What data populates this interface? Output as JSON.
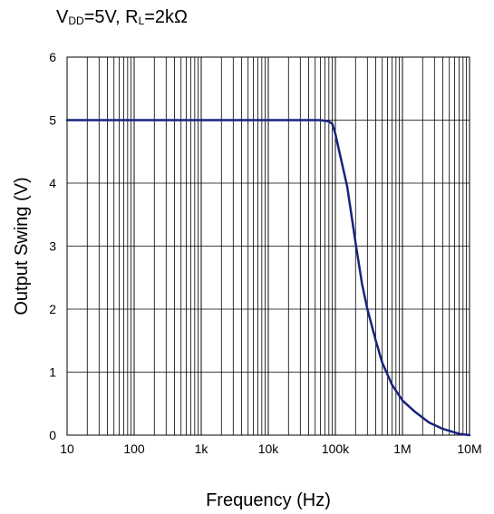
{
  "conditions": {
    "vdd_prefix": "V",
    "vdd_sub": "DD",
    "vdd_value": "=5V, ",
    "rl_prefix": "R",
    "rl_sub": "L",
    "rl_value": "=2kΩ"
  },
  "chart_data": {
    "type": "line",
    "title": "",
    "xlabel": "Frequency (Hz)",
    "ylabel": "Output Swing (V)",
    "x_scale": "log",
    "xlim": [
      10,
      10000000
    ],
    "ylim": [
      0,
      6
    ],
    "x_tick_values": [
      10,
      100,
      1000,
      10000,
      100000,
      1000000,
      10000000
    ],
    "x_tick_labels": [
      "10",
      "100",
      "1k",
      "10k",
      "100k",
      "1M",
      "10M"
    ],
    "y_tick_values": [
      0,
      1,
      2,
      3,
      4,
      5,
      6
    ],
    "y_tick_labels": [
      "0",
      "1",
      "2",
      "3",
      "4",
      "5",
      "6"
    ],
    "grid": true,
    "series_color": "#1a237e",
    "series": [
      {
        "x": [
          10,
          100,
          1000,
          10000,
          60000,
          80000,
          90000,
          100000,
          120000,
          150000,
          200000,
          250000,
          300000,
          400000,
          500000,
          700000,
          1000000,
          1500000,
          2500000,
          4000000,
          7000000,
          10000000
        ],
        "y": [
          5.0,
          5.0,
          5.0,
          5.0,
          5.0,
          4.98,
          4.94,
          4.78,
          4.4,
          3.95,
          3.05,
          2.4,
          2.0,
          1.5,
          1.15,
          0.8,
          0.55,
          0.38,
          0.2,
          0.1,
          0.02,
          0.0
        ]
      }
    ]
  }
}
